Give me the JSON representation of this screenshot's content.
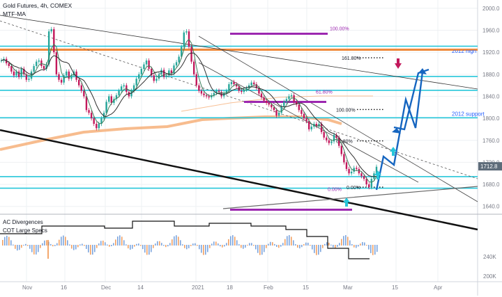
{
  "header": {
    "title": "Gold Futures, 4h, COMEX",
    "indicator": "MTF-MA"
  },
  "sub_pane": {
    "labels": [
      "AC Divergences",
      "COT Large Specs"
    ],
    "ticks": [
      "240K",
      "200K"
    ]
  },
  "colors": {
    "cyan_line": "#26c6da",
    "orange_line": "#ef8a3c",
    "purple_bar": "#9c27b0",
    "price_tag": "#5d6b79",
    "projection": "#1565c0",
    "arrow_up": "#26c6da",
    "arrow_down": "#c2185b",
    "candle_up": "#26a69a",
    "candle_down": "#c2185b",
    "ma_fast": "#3e7d5a",
    "ma_slow": "#2e2e2e",
    "ma_long": "#f6b07a"
  },
  "chart_data": {
    "type": "line",
    "title": "Gold Futures, 4h, COMEX",
    "x_ticks": [
      "Nov",
      "16",
      "Dec",
      "14",
      "2021",
      "18",
      "Feb",
      "15",
      "Mar",
      "15",
      "Apr"
    ],
    "y_ticks": [
      2000,
      1960,
      1920,
      1880,
      1840,
      1800,
      1760,
      1720,
      1680,
      1640
    ],
    "ylim": [
      1627,
      2015
    ],
    "last_price": "1712.8",
    "price_path": [
      1905,
      1908,
      1900,
      1895,
      1885,
      1878,
      1885,
      1875,
      1890,
      1880,
      1870,
      1872,
      1885,
      1895,
      1903,
      1905,
      1895,
      1890,
      1898,
      1958,
      1962,
      1920,
      1880,
      1870,
      1865,
      1878,
      1885,
      1872,
      1878,
      1885,
      1870,
      1860,
      1850,
      1840,
      1815,
      1810,
      1800,
      1790,
      1782,
      1790,
      1800,
      1810,
      1830,
      1840,
      1828,
      1835,
      1842,
      1850,
      1858,
      1860,
      1848,
      1840,
      1850,
      1860,
      1872,
      1880,
      1890,
      1898,
      1905,
      1890,
      1878,
      1868,
      1872,
      1880,
      1888,
      1875,
      1878,
      1887,
      1882,
      1896,
      1902,
      1912,
      1930,
      1956,
      1958,
      1930,
      1903,
      1880,
      1860,
      1850,
      1845,
      1842,
      1840,
      1838,
      1842,
      1846,
      1850,
      1848,
      1840,
      1846,
      1850,
      1862,
      1866,
      1862,
      1858,
      1850,
      1848,
      1852,
      1855,
      1860,
      1865,
      1862,
      1855,
      1845,
      1838,
      1832,
      1828,
      1825,
      1820,
      1815,
      1805,
      1810,
      1822,
      1830,
      1835,
      1840,
      1842,
      1830,
      1825,
      1815,
      1808,
      1800,
      1795,
      1780,
      1785,
      1790,
      1786,
      1790,
      1775,
      1765,
      1760,
      1755,
      1758,
      1770,
      1765,
      1750,
      1735,
      1720,
      1708,
      1700,
      1703,
      1710,
      1708,
      1700,
      1695,
      1690,
      1680,
      1675,
      1690,
      1700,
      1712
    ],
    "horizontal_levels": [
      {
        "price": 1924,
        "color": "orange",
        "label": "2012 high"
      },
      {
        "price": 1925.5,
        "color": "orange",
        "label": ""
      },
      {
        "price": 1931,
        "color": "cyan",
        "label": ""
      },
      {
        "price": 1876,
        "color": "cyan",
        "label": ""
      },
      {
        "price": 1851,
        "color": "cyan",
        "label": ""
      },
      {
        "price": 1801,
        "color": "cyan",
        "label": "2012 support"
      },
      {
        "price": 1694,
        "color": "cyan",
        "label": ""
      },
      {
        "price": 1673,
        "color": "cyan",
        "label": ""
      }
    ],
    "fibonacci": [
      {
        "label": "161.80%",
        "price": 1910
      },
      {
        "label": "100.00%",
        "price": 1816
      },
      {
        "label": "61.80%",
        "price": 1759
      },
      {
        "label": "0.00%",
        "price": 1675
      }
    ],
    "purple_labels": [
      {
        "label": "100.00%",
        "price": 1964
      },
      {
        "label": "61.80%",
        "price": 1849
      },
      {
        "label": "0.00%",
        "price": 1672
      }
    ]
  }
}
